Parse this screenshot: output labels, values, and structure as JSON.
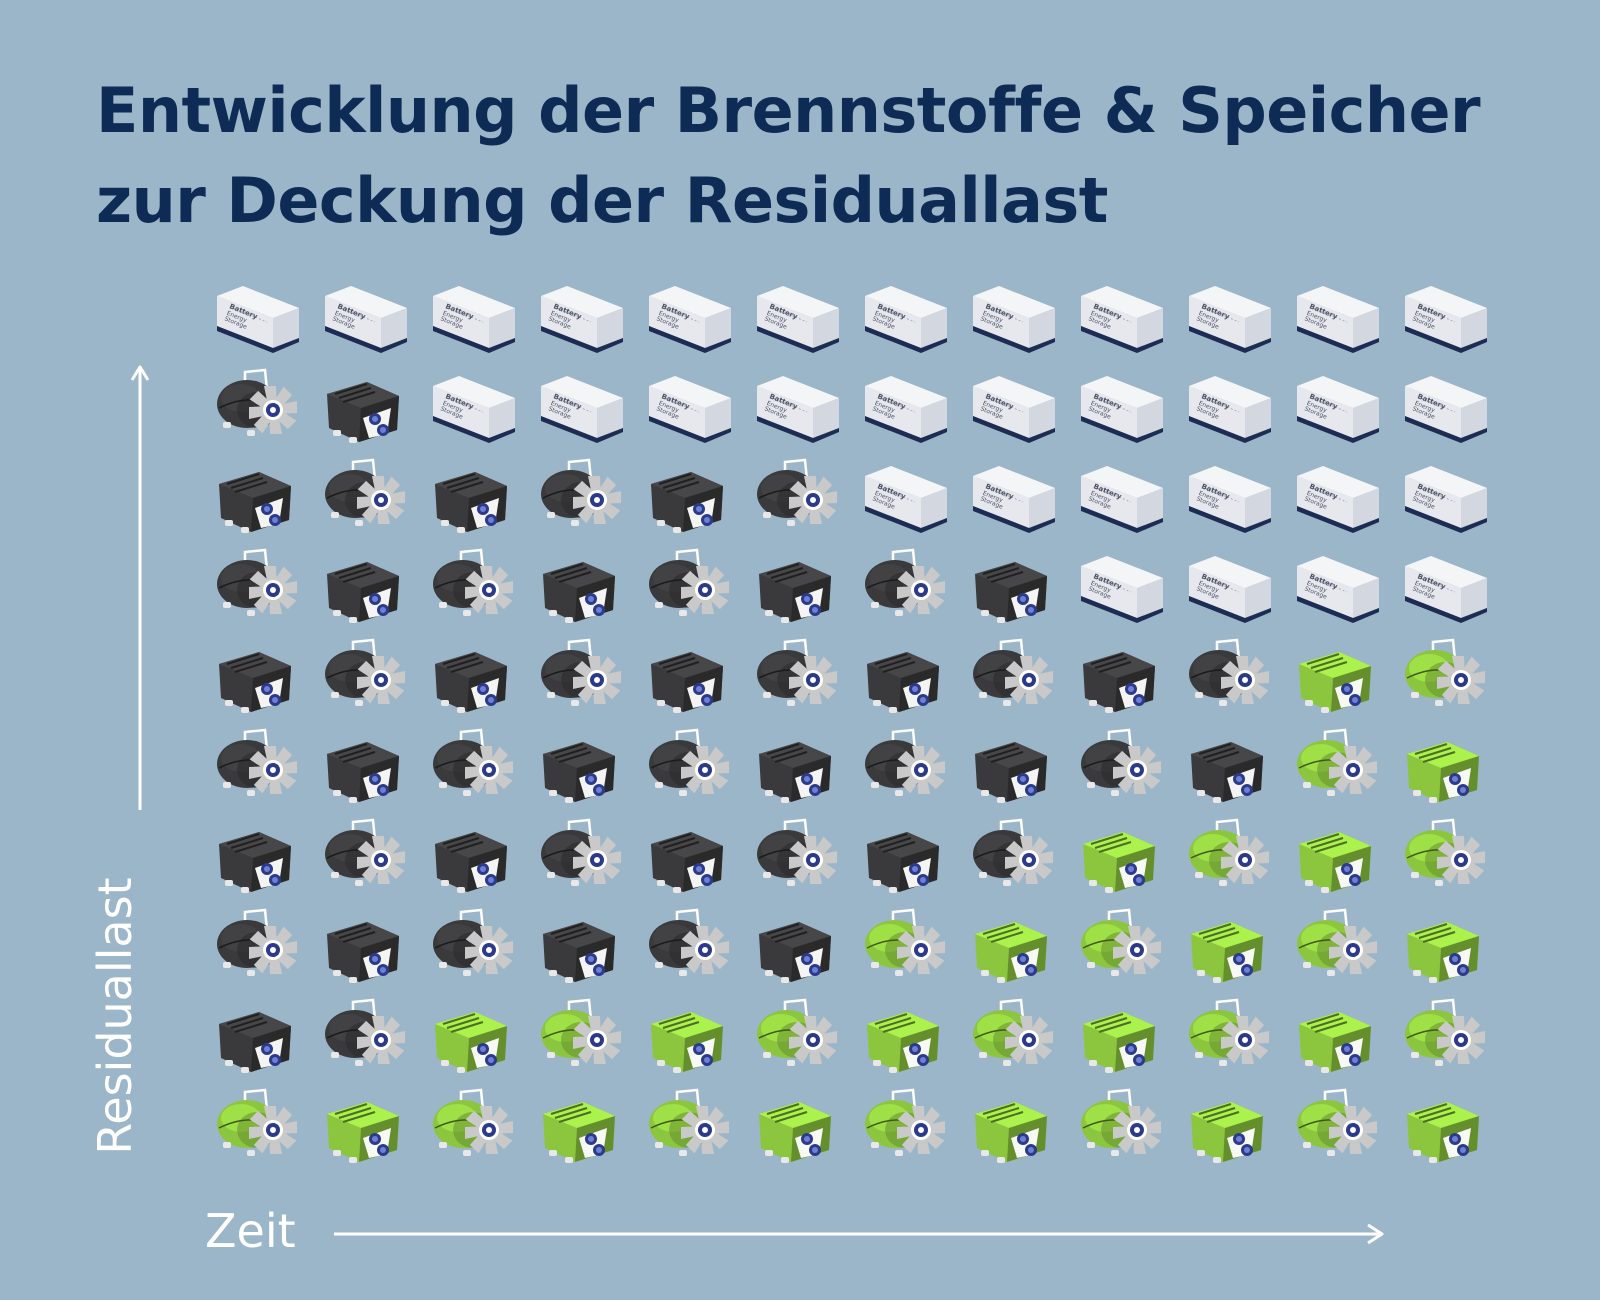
{
  "title": {
    "line1": "Entwicklung der Brennstoffe & Speicher",
    "line2": "zur Deckung der Residuallast"
  },
  "axes": {
    "y_label": "Residuallast",
    "x_label": "Zeit"
  },
  "icons": {
    "battery_text": [
      "Battery",
      "Energy",
      "Storage"
    ]
  },
  "colors": {
    "background": "#9cb6c9",
    "title": "#0e2b55",
    "fossil": "#3a3a3c",
    "green": "#8cc63f",
    "battery": "#f4f5f7",
    "axis": "#ffffff"
  },
  "chart_data": {
    "type": "table",
    "x_label": "Zeit",
    "y_label": "Residuallast",
    "rows_top_to_bottom": [
      [
        "battery",
        "battery",
        "battery",
        "battery",
        "battery",
        "battery",
        "battery",
        "battery",
        "battery",
        "battery",
        "battery",
        "battery"
      ],
      [
        "fossil-turbine",
        "fossil-engine",
        "battery",
        "battery",
        "battery",
        "battery",
        "battery",
        "battery",
        "battery",
        "battery",
        "battery",
        "battery"
      ],
      [
        "fossil-engine",
        "fossil-turbine",
        "fossil-engine",
        "fossil-turbine",
        "fossil-engine",
        "fossil-turbine",
        "battery",
        "battery",
        "battery",
        "battery",
        "battery",
        "battery"
      ],
      [
        "fossil-turbine",
        "fossil-engine",
        "fossil-turbine",
        "fossil-engine",
        "fossil-turbine",
        "fossil-engine",
        "fossil-turbine",
        "fossil-engine",
        "battery",
        "battery",
        "battery",
        "battery"
      ],
      [
        "fossil-engine",
        "fossil-turbine",
        "fossil-engine",
        "fossil-turbine",
        "fossil-engine",
        "fossil-turbine",
        "fossil-engine",
        "fossil-turbine",
        "fossil-engine",
        "fossil-turbine",
        "green-engine",
        "green-turbine"
      ],
      [
        "fossil-turbine",
        "fossil-engine",
        "fossil-turbine",
        "fossil-engine",
        "fossil-turbine",
        "fossil-engine",
        "fossil-turbine",
        "fossil-engine",
        "fossil-turbine",
        "fossil-engine",
        "green-turbine",
        "green-engine"
      ],
      [
        "fossil-engine",
        "fossil-turbine",
        "fossil-engine",
        "fossil-turbine",
        "fossil-engine",
        "fossil-turbine",
        "fossil-engine",
        "fossil-turbine",
        "green-engine",
        "green-turbine",
        "green-engine",
        "green-turbine"
      ],
      [
        "fossil-turbine",
        "fossil-engine",
        "fossil-turbine",
        "fossil-engine",
        "fossil-turbine",
        "fossil-engine",
        "green-turbine",
        "green-engine",
        "green-turbine",
        "green-engine",
        "green-turbine",
        "green-engine"
      ],
      [
        "fossil-engine",
        "fossil-turbine",
        "green-engine",
        "green-turbine",
        "green-engine",
        "green-turbine",
        "green-engine",
        "green-turbine",
        "green-engine",
        "green-turbine",
        "green-engine",
        "green-turbine"
      ],
      [
        "green-turbine",
        "green-engine",
        "green-turbine",
        "green-engine",
        "green-turbine",
        "green-engine",
        "green-turbine",
        "green-engine",
        "green-turbine",
        "green-engine",
        "green-turbine",
        "green-engine"
      ]
    ]
  }
}
